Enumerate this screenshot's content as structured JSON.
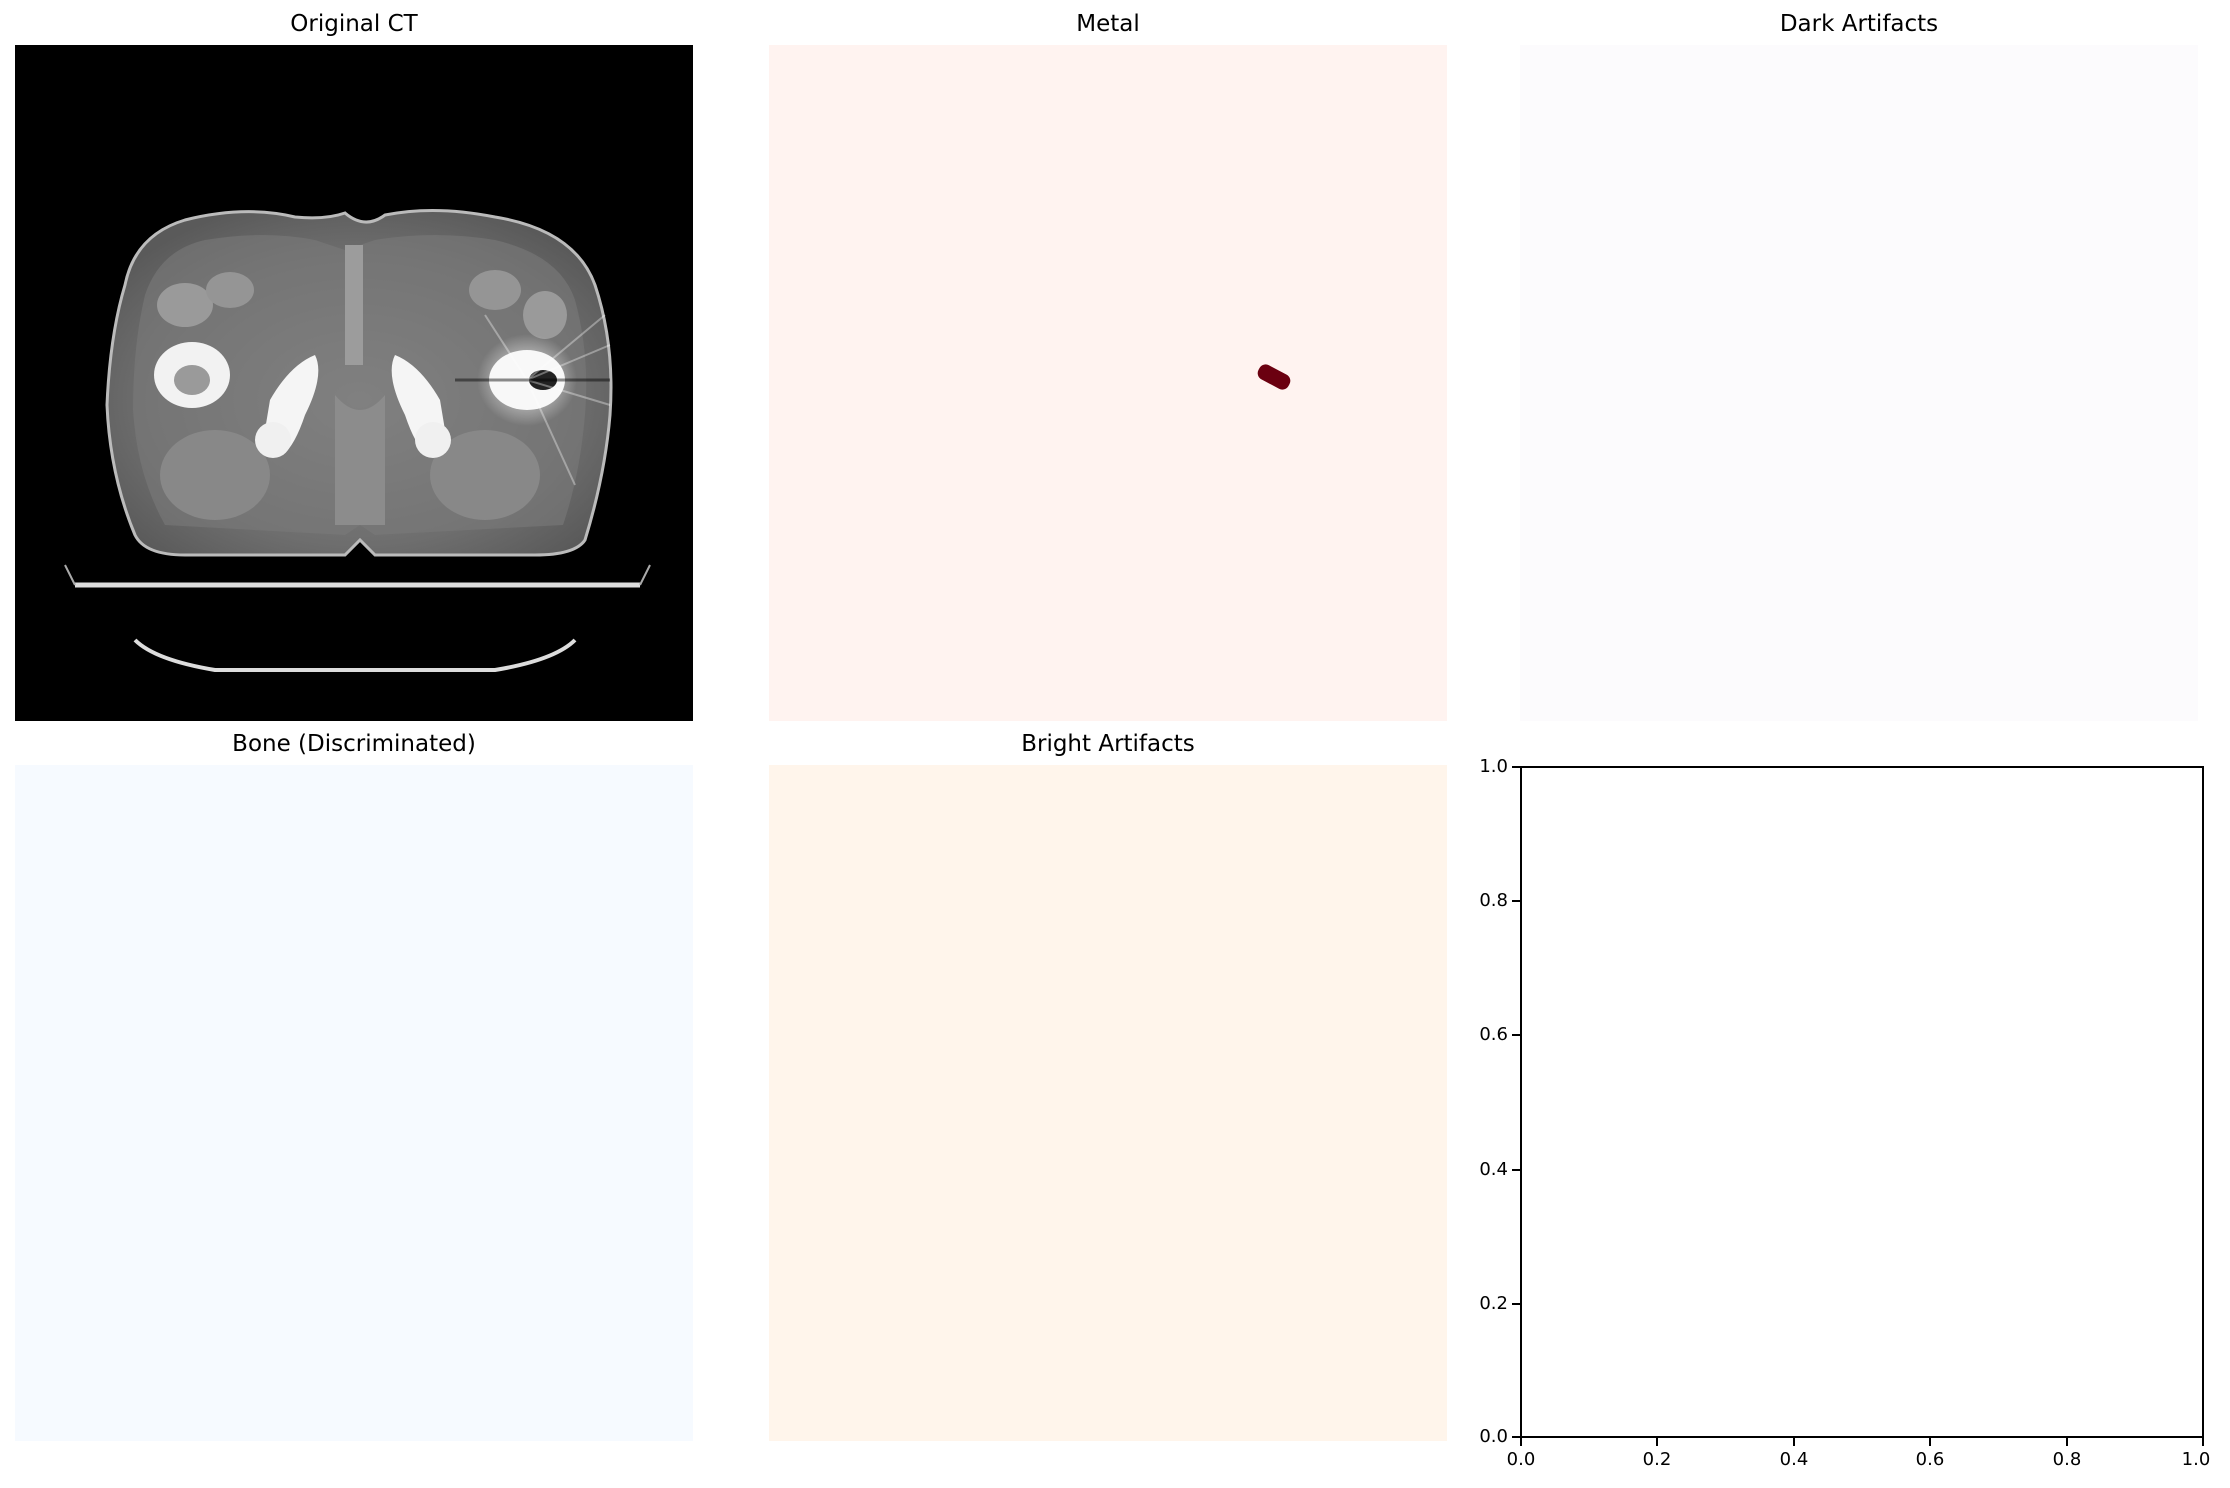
{
  "panels": {
    "original_ct": {
      "title": "Original CT"
    },
    "metal": {
      "title": "Metal",
      "background": "#fff3f0",
      "mask_color": "#6b0010"
    },
    "dark_artifacts": {
      "title": "Dark Artifacts",
      "background": "#fcfbfd"
    },
    "bone": {
      "title": "Bone (Discriminated)",
      "background": "#f6faff"
    },
    "bright_artifacts": {
      "title": "Bright Artifacts",
      "background": "#fff5eb"
    }
  },
  "empty_axes": {
    "xlim": [
      0.0,
      1.0
    ],
    "ylim": [
      0.0,
      1.0
    ],
    "x_ticks": [
      "0.0",
      "0.2",
      "0.4",
      "0.6",
      "0.8",
      "1.0"
    ],
    "y_ticks": [
      "1.0",
      "0.8",
      "0.6",
      "0.4",
      "0.2",
      "0.0"
    ]
  }
}
